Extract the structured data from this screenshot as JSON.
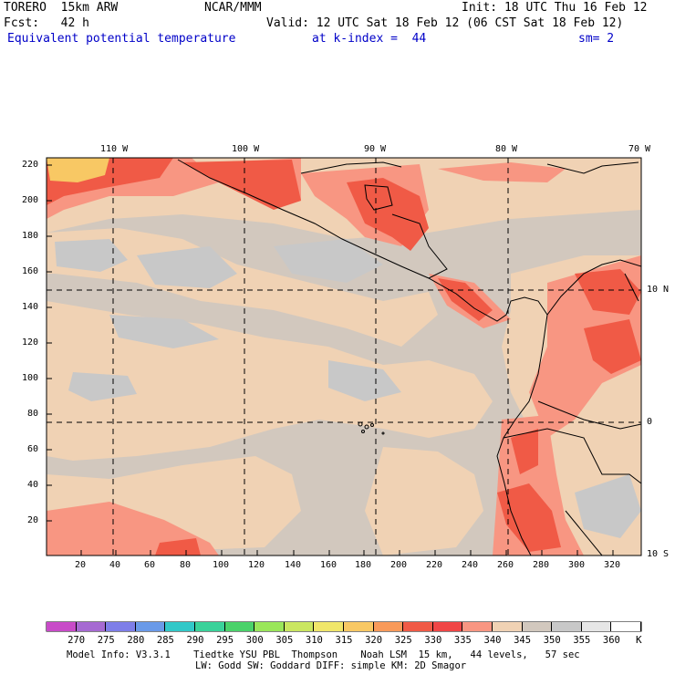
{
  "header": {
    "model": "TORERO  15km ARW",
    "center": "NCAR/MMM",
    "init": "Init: 18 UTC Thu 16 Feb 12",
    "fcst": "Fcst:   42 h",
    "valid": "Valid: 12 UTC Sat 18 Feb 12 (06 CST Sat 18 Feb 12)",
    "field": "Equivalent potential temperature",
    "level": "at k-index =  44",
    "smooth": "sm= 2"
  },
  "map": {
    "lon_labels": [
      "110 W",
      "100 W",
      "90 W",
      "80 W",
      "70 W"
    ],
    "lat_labels": [
      "10 N",
      "0",
      "10 S"
    ],
    "y_ticks": [
      "20",
      "40",
      "60",
      "80",
      "100",
      "120",
      "140",
      "160",
      "180",
      "200",
      "220"
    ],
    "x_ticks": [
      "20",
      "40",
      "60",
      "80",
      "100",
      "120",
      "140",
      "160",
      "180",
      "200",
      "220",
      "240",
      "260",
      "280",
      "300",
      "320"
    ]
  },
  "colorbar": {
    "labels": [
      "270",
      "275",
      "280",
      "285",
      "290",
      "295",
      "300",
      "305",
      "310",
      "315",
      "320",
      "325",
      "330",
      "335",
      "340",
      "345",
      "350",
      "355",
      "360"
    ],
    "unit": "K",
    "colors": [
      "#c84bc8",
      "#a66ad2",
      "#7e7ee8",
      "#6a9ae8",
      "#32c8c8",
      "#3ad29a",
      "#4ad26a",
      "#9ae65a",
      "#cae660",
      "#f0e66a",
      "#f8c864",
      "#f89a5a",
      "#f05a46",
      "#f04646",
      "#f89682",
      "#f0d2b4",
      "#d2c8be",
      "#c8c8c8",
      "#e6e6e6",
      "#ffffff"
    ]
  },
  "footer": {
    "line1": "Model Info: V3.3.1    Tiedtke YSU PBL  Thompson    Noah LSM  15 km,   44 levels,   57 sec",
    "line2": "LW: Godd SW: Goddard DIFF: simple KM: 2D Smagor"
  }
}
